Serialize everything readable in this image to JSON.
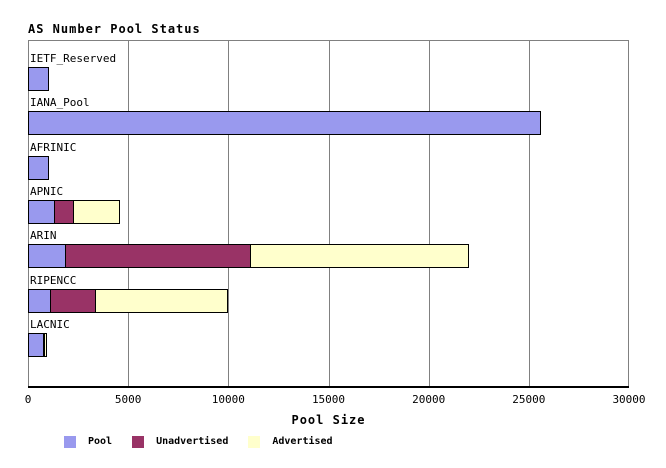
{
  "chart_data": {
    "type": "bar",
    "orientation": "horizontal",
    "stacked": true,
    "title": "AS Number Pool Status",
    "xlabel": "Pool Size",
    "xlim": [
      0,
      30000
    ],
    "xticks": [
      "0",
      "5000",
      "10000",
      "15000",
      "20000",
      "25000",
      "30000"
    ],
    "grid": "vertical-only",
    "legend_position": "bottom-left",
    "categories": [
      "IETF_Reserved",
      "IANA_Pool",
      "AFRINIC",
      "APNIC",
      "ARIN",
      "RIPENCC",
      "LACNIC"
    ],
    "series": [
      {
        "name": "Pool",
        "color": "#9999ee",
        "values": [
          1050,
          25600,
          1050,
          1350,
          1900,
          1150,
          800
        ]
      },
      {
        "name": "Unadvertised",
        "color": "#993366",
        "values": [
          0,
          0,
          0,
          1000,
          9300,
          2300,
          50
        ]
      },
      {
        "name": "Advertised",
        "color": "#ffffcc",
        "values": [
          0,
          0,
          0,
          2350,
          10900,
          6650,
          150
        ]
      }
    ],
    "colors": {
      "background": "#ffffff",
      "grid": "#808080",
      "axis": "#000000",
      "bar_border": "#000000",
      "text": "#000000"
    }
  }
}
